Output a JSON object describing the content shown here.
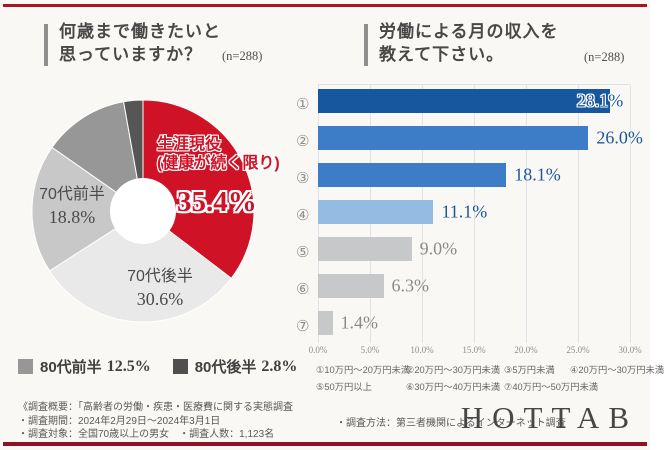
{
  "page": {
    "background": "#faf8f4",
    "top_rule_color": "#ad1126",
    "bottom_rule_color": "#8e1126",
    "logo_text": "HOTTAB"
  },
  "chart_data": [
    {
      "type": "pie",
      "donut": true,
      "start": "top",
      "direction": "clockwise",
      "title_line1": "何歳まで働きたいと",
      "title_line2": "思っていますか？",
      "n_label": "(n=288)",
      "slices": [
        {
          "label": "生涯現役（健康が続く限り）",
          "value": 35.4,
          "color": "#cf1226"
        },
        {
          "label": "70代後半",
          "value": 30.6,
          "color": "#e9e9e9"
        },
        {
          "label": "70代前半",
          "value": 18.8,
          "color": "#c8c8c8"
        },
        {
          "label": "80代前半",
          "value": 12.5,
          "color": "#979797"
        },
        {
          "label": "80代後半",
          "value": 2.8,
          "color": "#565656"
        }
      ],
      "inner_labels": {
        "main_line1": "生涯現役",
        "main_line2": "(健康が続く限り)",
        "main_value": "35.4%",
        "early70s_name": "70代前半",
        "early70s_value": "18.8%",
        "late70s_name": "70代後半",
        "late70s_value": "30.6%"
      },
      "legend": [
        {
          "label": "80代前半",
          "value": "12.5%",
          "color": "#979797"
        },
        {
          "label": "80代後半",
          "value": "2.8%",
          "color": "#4f4f4f"
        }
      ]
    },
    {
      "type": "bar",
      "orientation": "horizontal",
      "title_line1": "労働による月の収入を",
      "title_line2": "教えて下さい。",
      "n_label": "(n=288)",
      "xlim": [
        0,
        30
      ],
      "x_ticks": [
        "0.0%",
        "5.0%",
        "10.0%",
        "15.0%",
        "20.0%",
        "25.0%",
        "30.0%"
      ],
      "categories": [
        "①",
        "②",
        "③",
        "④",
        "⑤",
        "⑥",
        "⑦"
      ],
      "bars": [
        {
          "value": 28.1,
          "label": "28.1%",
          "color": "#17579e",
          "label_color": "#17579e",
          "label_placement": "overlap"
        },
        {
          "value": 26.0,
          "label": "26.0%",
          "color": "#3d7cc6",
          "label_color": "#1c5698",
          "label_placement": "outside"
        },
        {
          "value": 18.1,
          "label": "18.1%",
          "color": "#3d7cc6",
          "label_color": "#1c5698",
          "label_placement": "outside"
        },
        {
          "value": 11.1,
          "label": "11.1%",
          "color": "#94bbe1",
          "label_color": "#1c5698",
          "label_placement": "outside"
        },
        {
          "value": 9.0,
          "label": "9.0%",
          "color": "#c6c8ca",
          "label_color": "#8a8a8a",
          "label_placement": "outside"
        },
        {
          "value": 6.3,
          "label": "6.3%",
          "color": "#c6c8ca",
          "label_color": "#8a8a8a",
          "label_placement": "outside"
        },
        {
          "value": 1.4,
          "label": "1.4%",
          "color": "#c6c8ca",
          "label_color": "#8a8a8a",
          "label_placement": "outside"
        }
      ],
      "legend_rows": [
        [
          "①10万円～20万円未満",
          "②20万円～30万円未満",
          "③5万円未満",
          "④20万円～30万円未満"
        ],
        [
          "⑤50万円以上",
          "⑥30万円～40万円未満",
          "⑦40万円～50万円未満"
        ]
      ]
    }
  ],
  "footer": {
    "overview_lines": [
      "《調査概要：「高齢者の労働・疾患・医療費に関する実態調査",
      "・調査期間：2024年2月29日～2024年3月1日",
      "・調査対象：全国70歳以上の男女　・調査人数：1,123名"
    ],
    "method": "・調査方法：第三者機関によるインターネット調査"
  }
}
